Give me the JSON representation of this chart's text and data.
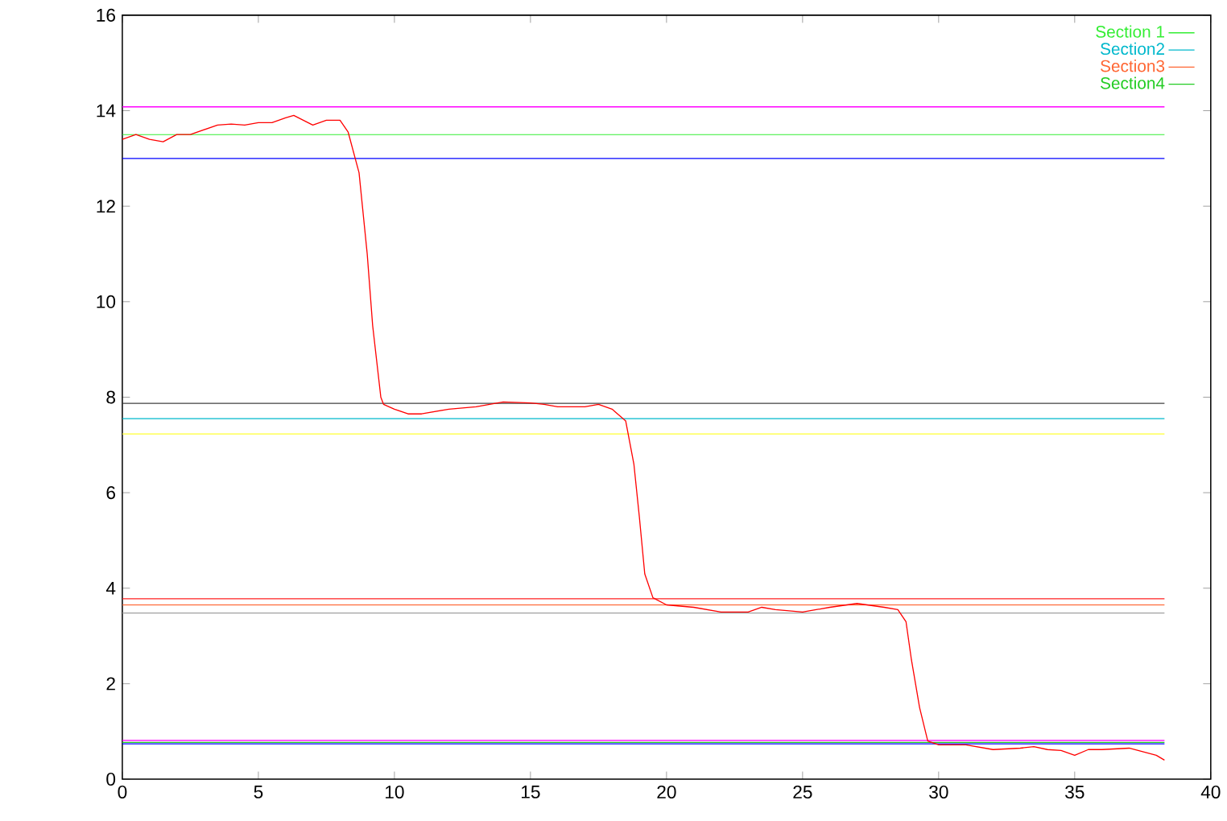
{
  "chart_data": {
    "type": "line",
    "xlim": [
      0,
      40
    ],
    "ylim": [
      0,
      16
    ],
    "xticks": [
      0,
      5,
      10,
      15,
      20,
      25,
      30,
      35,
      40
    ],
    "yticks": [
      0,
      2,
      4,
      6,
      8,
      10,
      12,
      14,
      16
    ],
    "grid": false,
    "legend": "top right",
    "marker": "none",
    "line_style": "solid",
    "series": [
      {
        "name": "Section 1",
        "color": "#33ee33",
        "x": [
          0,
          38.3
        ],
        "values": [
          13.5,
          13.5
        ]
      },
      {
        "name": "Section2",
        "color": "#00b8cc",
        "x": [
          0,
          38.3
        ],
        "values": [
          7.55,
          7.55
        ]
      },
      {
        "name": "Section3",
        "color": "#ff6633",
        "x": [
          0,
          38.3
        ],
        "values": [
          3.65,
          3.65
        ]
      },
      {
        "name": "Section4",
        "color": "#22cc22",
        "x": [
          0,
          38.3
        ],
        "values": [
          0.77,
          0.77
        ]
      },
      {
        "color": "#ff00ff",
        "x": [
          0,
          38.3
        ],
        "values": [
          14.08,
          14.08
        ]
      },
      {
        "color": "#0000ff",
        "x": [
          0,
          38.3
        ],
        "values": [
          13.0,
          13.0
        ]
      },
      {
        "color": "#404040",
        "x": [
          0,
          38.3
        ],
        "values": [
          7.87,
          7.87
        ]
      },
      {
        "color": "#ffff33",
        "x": [
          0,
          38.3
        ],
        "values": [
          7.23,
          7.23
        ]
      },
      {
        "color": "#ff2020",
        "x": [
          0,
          38.3
        ],
        "values": [
          3.78,
          3.78
        ]
      },
      {
        "color": "#a0a0a0",
        "x": [
          0,
          38.3
        ],
        "values": [
          3.48,
          3.48
        ]
      },
      {
        "color": "#ff00ff",
        "x": [
          0,
          38.3
        ],
        "values": [
          0.81,
          0.81
        ]
      },
      {
        "color": "#0000ff",
        "x": [
          0,
          38.3
        ],
        "values": [
          0.74,
          0.74
        ]
      },
      {
        "color": "#ff0000",
        "x": [
          0,
          0.5,
          1,
          1.5,
          2,
          2.5,
          3,
          3.5,
          4,
          4.5,
          5,
          5.5,
          6,
          6.3,
          7,
          7.5,
          8,
          8.3,
          8.7,
          9,
          9.2,
          9.5,
          9.6,
          10,
          10.5,
          11,
          11.5,
          12,
          13,
          14,
          15,
          15.5,
          16,
          17,
          17.5,
          18,
          18.5,
          18.8,
          19,
          19.2,
          19.5,
          20,
          21,
          22,
          23,
          23.5,
          24,
          25,
          25.5,
          26,
          27,
          28,
          28.5,
          28.8,
          29,
          29.3,
          29.6,
          30,
          31,
          32,
          33,
          33.5,
          34,
          34.5,
          35,
          35.5,
          36,
          37,
          38,
          38.3
        ],
        "values": [
          13.4,
          13.5,
          13.4,
          13.35,
          13.5,
          13.5,
          13.6,
          13.7,
          13.72,
          13.7,
          13.75,
          13.75,
          13.85,
          13.9,
          13.7,
          13.8,
          13.8,
          13.55,
          12.7,
          11.0,
          9.5,
          8.0,
          7.85,
          7.75,
          7.65,
          7.65,
          7.7,
          7.75,
          7.8,
          7.9,
          7.88,
          7.85,
          7.8,
          7.8,
          7.85,
          7.75,
          7.5,
          6.6,
          5.5,
          4.3,
          3.8,
          3.65,
          3.6,
          3.5,
          3.5,
          3.6,
          3.55,
          3.5,
          3.55,
          3.6,
          3.68,
          3.6,
          3.55,
          3.3,
          2.5,
          1.5,
          0.8,
          0.72,
          0.72,
          0.62,
          0.65,
          0.68,
          0.62,
          0.6,
          0.5,
          0.62,
          0.62,
          0.65,
          0.5,
          0.4
        ]
      }
    ]
  }
}
